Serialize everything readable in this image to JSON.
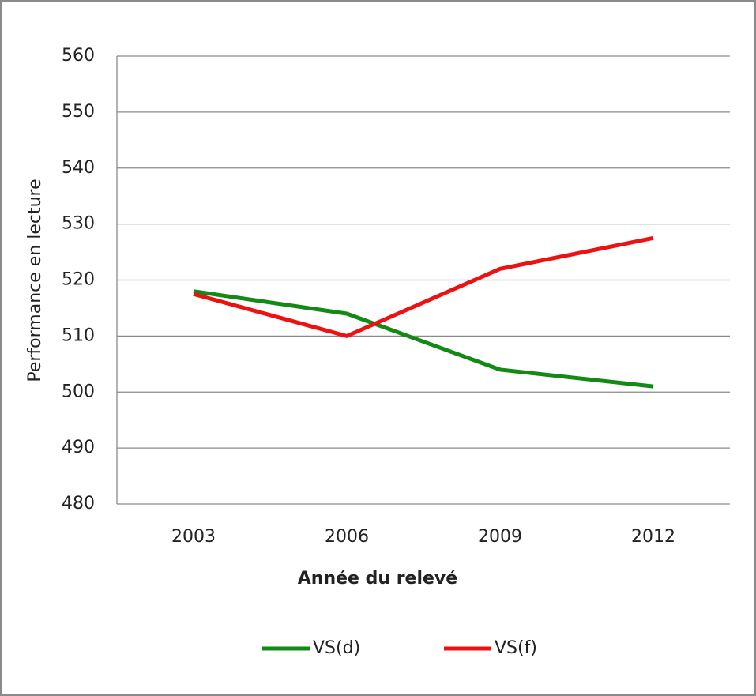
{
  "chart_data": {
    "type": "line",
    "categories": [
      "2003",
      "2006",
      "2009",
      "2012"
    ],
    "series": [
      {
        "name": "VS(d)",
        "color": "#138a13",
        "values": [
          518,
          514,
          504,
          501
        ]
      },
      {
        "name": "VS(f)",
        "color": "#ee1111",
        "values": [
          517.5,
          510,
          522,
          527.5
        ]
      }
    ],
    "x_label": "Année du relevé",
    "y_label": "Performance en lecture",
    "ylim": [
      480,
      560
    ],
    "yticks": [
      480,
      490,
      500,
      510,
      520,
      530,
      540,
      550,
      560
    ],
    "grid": true,
    "legend": "bottom"
  }
}
